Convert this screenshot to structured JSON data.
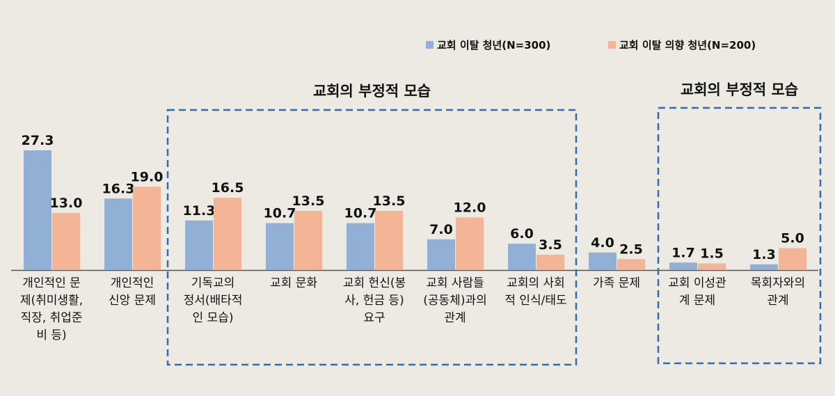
{
  "chart_data": {
    "type": "bar",
    "categories": [
      [
        "개인적인 문",
        "제(취미생활,",
        "직장, 취업준",
        "비 등)"
      ],
      [
        "개인적인",
        "신앙 문제"
      ],
      [
        "기독교의",
        "정서(배타적",
        "인 모습)"
      ],
      [
        "교회 문화"
      ],
      [
        "교회 헌신(봉",
        "사, 헌금 등)",
        "요구"
      ],
      [
        "교회 사람들",
        "(공동체)과의",
        "관계"
      ],
      [
        "교회의 사회",
        "적 인식/태도"
      ],
      [
        "가족 문제"
      ],
      [
        "교회 이성관",
        "계 문제"
      ],
      [
        "목회자와의",
        "관계"
      ]
    ],
    "series": [
      {
        "name": "교회 이탈 청년(N=300)",
        "color": "#92B0D6",
        "values": [
          27.3,
          16.3,
          11.3,
          10.7,
          10.7,
          7.0,
          6.0,
          4.0,
          1.7,
          1.3
        ],
        "labels": [
          "27.3",
          "16.3",
          "11.3",
          "10.7",
          "10.7",
          "7.0",
          "6.0",
          "4.0",
          "1.7",
          "1.3"
        ]
      },
      {
        "name": "교회 이탈 의향 청년(N=200)",
        "color": "#F4B597",
        "values": [
          13.0,
          19.0,
          16.5,
          13.5,
          13.5,
          12.0,
          3.5,
          2.5,
          1.5,
          5.0
        ],
        "labels": [
          "13.0",
          "19.0",
          "16.5",
          "13.5",
          "13.5",
          "12.0",
          "3.5",
          "2.5",
          "1.5",
          "5.0"
        ]
      }
    ],
    "ylim": [
      0,
      30
    ],
    "annotations": [
      {
        "label": "교회의 부정적 모습",
        "from_category": 2,
        "to_category": 6
      },
      {
        "label": "교회의 부정적 모습",
        "from_category": 8,
        "to_category": 9
      }
    ],
    "legend_position": "top-right",
    "axis_color": "#555555",
    "box_color": "#2E6DB4"
  }
}
